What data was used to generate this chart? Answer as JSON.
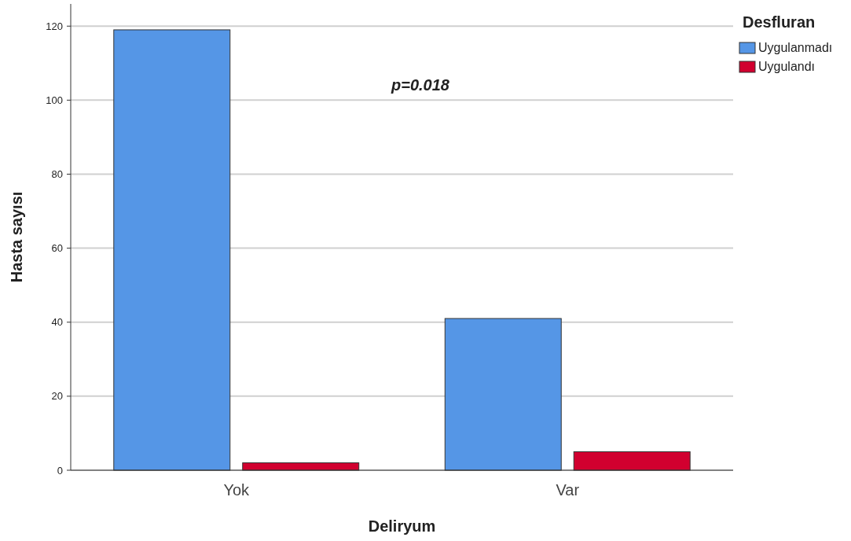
{
  "chart_data": {
    "type": "bar",
    "xlabel": "Deliryum",
    "ylabel": "Hasta sayısı",
    "legend_title": "Desfluran",
    "categories": [
      "Yok",
      "Var"
    ],
    "series": [
      {
        "name": "Uygulanmadı",
        "color": "#5596e6",
        "values": [
          119,
          41
        ]
      },
      {
        "name": "Uygulandı",
        "color": "#d1002f",
        "values": [
          2,
          5
        ]
      }
    ],
    "ylim": [
      0,
      126
    ],
    "yticks": [
      0,
      20,
      40,
      60,
      80,
      100,
      120
    ],
    "grid": "y",
    "legend": "top right",
    "annotations": [
      "p=0.018"
    ]
  }
}
